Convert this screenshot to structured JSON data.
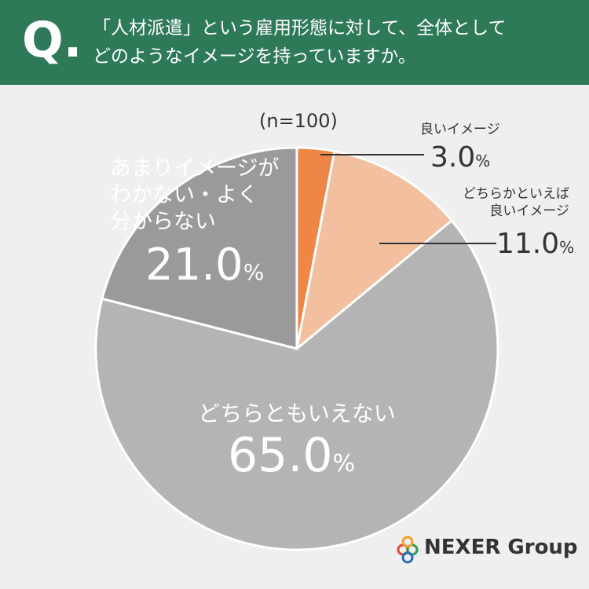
{
  "header": {
    "mark": "Q.",
    "question": "「人材派遣」という雇用形態に対して、全体として\nどのようなイメージを持っていますか。"
  },
  "chart_data": {
    "type": "pie",
    "subtitle": "(n=100)",
    "categories": [
      "良いイメージ",
      "どちらかといえば\n良いイメージ",
      "どちらともいえない",
      "あまりイメージが\nわかない・よく\n分からない"
    ],
    "values": [
      3.0,
      11.0,
      65.0,
      21.0
    ],
    "value_labels": [
      "3.0",
      "11.0",
      "65.0",
      "21.0"
    ],
    "unit": "%",
    "colors": [
      "#ef8645",
      "#f2bf9f",
      "#b5b4b4",
      "#9b9999"
    ]
  },
  "brand": "NEXER Group"
}
